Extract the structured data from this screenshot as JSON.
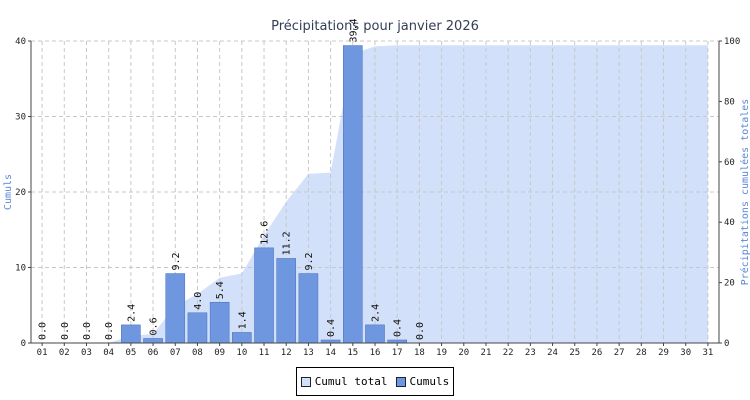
{
  "chart_data": {
    "type": "bar",
    "title": "Précipitations pour janvier 2026",
    "ylabel": "Cumuls",
    "y2label": "Précipitations cumulées totales",
    "ylim": [
      0,
      40
    ],
    "y2lim": [
      0,
      100
    ],
    "yticks": [
      "0",
      "10",
      "20",
      "30",
      "40"
    ],
    "y2ticks": [
      "0",
      "20",
      "40",
      "60",
      "80",
      "100"
    ],
    "grid": true,
    "legend_position": "bottom",
    "categories": [
      "01",
      "02",
      "03",
      "04",
      "05",
      "06",
      "07",
      "08",
      "09",
      "10",
      "11",
      "12",
      "13",
      "14",
      "15",
      "16",
      "17",
      "18",
      "19",
      "20",
      "21",
      "22",
      "23",
      "24",
      "25",
      "26",
      "27",
      "28",
      "29",
      "30",
      "31"
    ],
    "series": [
      {
        "name": "Cumuls",
        "type": "bar",
        "axis": "left",
        "color": "#6f97e0",
        "values": [
          0.0,
          0.0,
          0.0,
          0.0,
          2.4,
          0.6,
          9.2,
          4.0,
          5.4,
          1.4,
          12.6,
          11.2,
          9.2,
          0.4,
          39.4,
          2.4,
          0.4,
          0.0,
          null,
          null,
          null,
          null,
          null,
          null,
          null,
          null,
          null,
          null,
          null,
          null,
          null
        ],
        "labels": [
          "0.0",
          "0.0",
          "0.0",
          "0.0",
          "2.4",
          "0.6",
          "9.2",
          "4.0",
          "5.4",
          "1.4",
          "12.6",
          "11.2",
          "9.2",
          "0.4",
          "39.4",
          "2.4",
          "0.4",
          "0.0",
          "",
          "",
          "",
          "",
          "",
          "",
          "",
          "",
          "",
          "",
          "",
          "",
          ""
        ]
      },
      {
        "name": "Cumul total",
        "type": "area",
        "axis": "right",
        "color": "#d2e0fa",
        "values": [
          0.0,
          0.0,
          0.0,
          0.0,
          2.4,
          3.0,
          12.2,
          16.2,
          21.6,
          23.0,
          35.6,
          46.8,
          56.0,
          56.4,
          95.8,
          98.2,
          98.6,
          98.6,
          98.6,
          98.6,
          98.6,
          98.6,
          98.6,
          98.6,
          98.6,
          98.6,
          98.6,
          98.6,
          98.6,
          98.6,
          98.6
        ]
      }
    ]
  }
}
